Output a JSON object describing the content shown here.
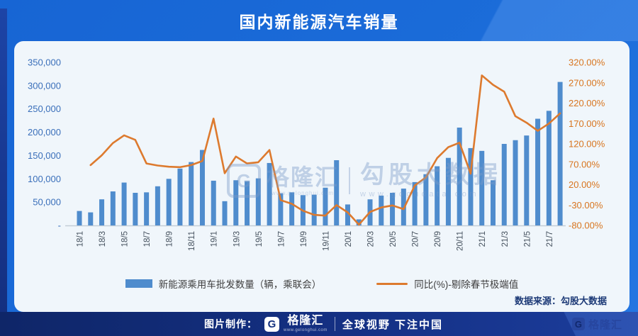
{
  "header": {
    "title": "国内新能源汽车销量"
  },
  "watermark": {
    "brand_icon": "G",
    "brand": "格隆汇",
    "brand_url": "www.gelonghui.com",
    "product": "勾股大数据",
    "product_url": "www.gogudata.com"
  },
  "panel": {
    "source": "数据来源：勾股大数据"
  },
  "footer": {
    "credit_label": "图片制作：",
    "brand_icon": "G",
    "brand": "格隆汇",
    "brand_url": "www.gelonghui.com",
    "slogan": "全球视野 下注中国",
    "right_brand_icon": "G",
    "right_brand": "格隆汇"
  },
  "chart_data": {
    "type": "combo",
    "title": "国内新能源汽车销量",
    "grid": false,
    "legend_position": "bottom",
    "x": [
      "18/1",
      "18/2",
      "18/3",
      "18/4",
      "18/5",
      "18/6",
      "18/7",
      "18/8",
      "18/9",
      "18/10",
      "18/11",
      "18/12",
      "19/1",
      "19/2",
      "19/3",
      "19/4",
      "19/5",
      "19/6",
      "19/7",
      "19/8",
      "19/9",
      "19/10",
      "19/11",
      "19/12",
      "20/1",
      "20/2",
      "20/3",
      "20/4",
      "20/5",
      "20/6",
      "20/7",
      "20/8",
      "20/9",
      "20/10",
      "20/11",
      "20/12",
      "21/1",
      "21/2",
      "21/3",
      "21/4",
      "21/5",
      "21/6",
      "21/7",
      "21/8"
    ],
    "x_tick_labels": [
      "18/1",
      "18/3",
      "18/5",
      "18/7",
      "18/9",
      "18/11",
      "19/1",
      "19/3",
      "19/5",
      "19/7",
      "19/9",
      "19/11",
      "20/1",
      "20/3",
      "20/5",
      "20/7",
      "20/9",
      "20/11",
      "21/1",
      "21/3",
      "21/5",
      "21/7"
    ],
    "series": [
      {
        "name": "新能源乘用车批发数量（辆，乘联会）",
        "type": "bar",
        "axis": "left",
        "color": "#4f8ccd",
        "values": [
          31000,
          28000,
          56000,
          73000,
          92000,
          70000,
          71000,
          84000,
          100000,
          122000,
          136000,
          162000,
          96000,
          52000,
          97000,
          95000,
          101000,
          134000,
          69000,
          71000,
          65000,
          66000,
          81000,
          140000,
          45000,
          13000,
          56000,
          64000,
          70000,
          79000,
          93000,
          110000,
          127000,
          145000,
          210000,
          166000,
          160000,
          97000,
          175000,
          183000,
          193000,
          229000,
          246000,
          308000
        ]
      },
      {
        "name": "同比(%)-剔除春节极端值",
        "type": "line",
        "axis": "right",
        "color": "#dd7a2e",
        "values": [
          null,
          68,
          92,
          122,
          141,
          130,
          72,
          67,
          64,
          63,
          68,
          78,
          182,
          48,
          89,
          72,
          75,
          105,
          -18,
          -27,
          -44,
          -54,
          -56,
          -30,
          -48,
          -78,
          -47,
          -36,
          -31,
          -40,
          18,
          38,
          85,
          112,
          123,
          47,
          288,
          265,
          248,
          188,
          172,
          152,
          170,
          195
        ]
      }
    ],
    "left_axis": {
      "min": 0,
      "max": 350000,
      "tick_values": [
        350000,
        300000,
        250000,
        200000,
        150000,
        100000,
        50000,
        0
      ],
      "tick_labels": [
        "350,000",
        "300,000",
        "250,000",
        "200,000",
        "150,000",
        "100,000",
        "50,000",
        "-"
      ]
    },
    "right_axis": {
      "min": -80,
      "max": 320,
      "tick_values": [
        320,
        270,
        220,
        170,
        120,
        70,
        20,
        -30,
        -80
      ],
      "tick_labels": [
        "320.00%",
        "270.00%",
        "220.00%",
        "170.00%",
        "120.00%",
        "70.00%",
        "20.00%",
        "-30.00%",
        "-80.00%"
      ]
    }
  }
}
